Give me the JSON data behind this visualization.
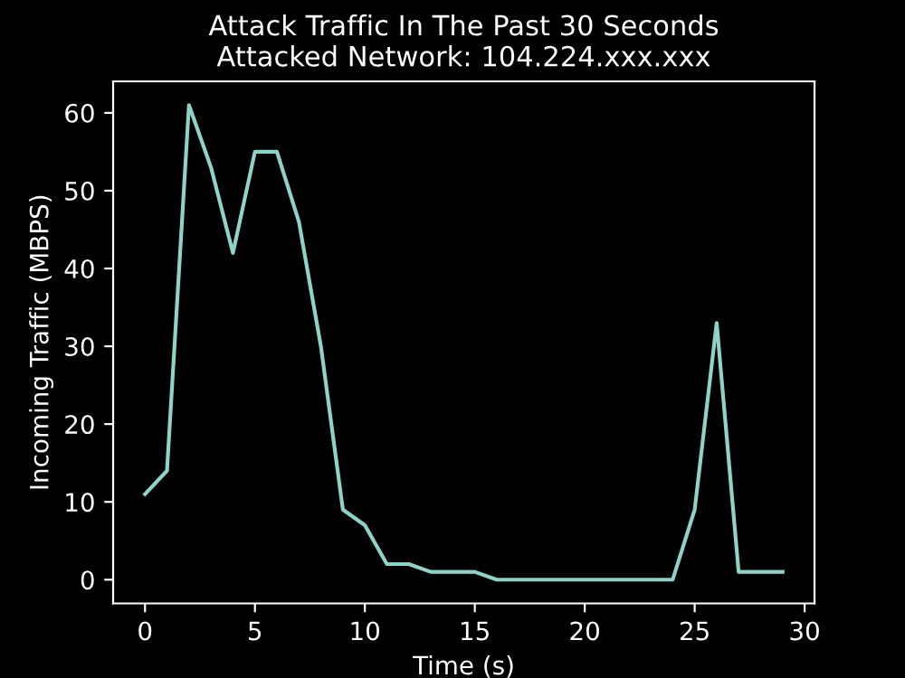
{
  "chart_data": {
    "type": "line",
    "title": "Attack Traffic In The Past 30 Seconds\nAttacked Network: 104.224.xxx.xxx",
    "xlabel": "Time (s)",
    "ylabel": "Incoming Traffic (MBPS)",
    "x": [
      0,
      1,
      2,
      3,
      4,
      5,
      6,
      7,
      8,
      9,
      10,
      11,
      12,
      13,
      14,
      15,
      16,
      17,
      18,
      19,
      20,
      21,
      22,
      23,
      24,
      25,
      26,
      27,
      28,
      29
    ],
    "series": [
      {
        "color": "#8dd3c7",
        "values": [
          11,
          14,
          61,
          53,
          42,
          55,
          55,
          46,
          30,
          9,
          7,
          2,
          2,
          1,
          1,
          1,
          0,
          0,
          0,
          0,
          0,
          0,
          0,
          0,
          0,
          9,
          33,
          1,
          1,
          1
        ]
      }
    ],
    "xlim": [
      -1.45,
      30.45
    ],
    "ylim": [
      -3.05,
      64.05
    ],
    "xticks": [
      0,
      5,
      10,
      15,
      20,
      25,
      30
    ],
    "yticks": [
      0,
      10,
      20,
      30,
      40,
      50,
      60
    ],
    "grid": false,
    "legend": false,
    "marker": "none",
    "line_style": "solid"
  }
}
